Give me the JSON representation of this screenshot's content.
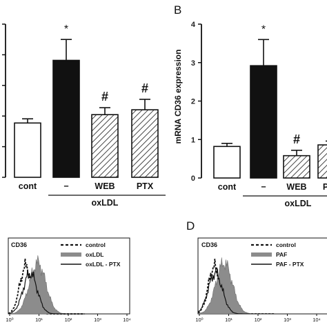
{
  "chart_data": [
    {
      "panel": "",
      "type": "bar",
      "categories": [
        "cont",
        "−",
        "WEB",
        "PTX"
      ],
      "group_label": "oxLDL",
      "values": [
        0.78,
        1.68,
        0.9,
        0.97
      ],
      "errors": [
        0.06,
        0.3,
        0.1,
        0.15
      ],
      "fills": [
        "open",
        "solid",
        "hatched",
        "hatched"
      ],
      "annotations": [
        "",
        "*",
        "#",
        "#"
      ],
      "ylim": [
        0,
        2.2
      ]
    },
    {
      "panel": "B",
      "type": "bar",
      "ylabel": "mRNA CD36 expression",
      "categories": [
        "cont",
        "−",
        "WEB",
        "PTX"
      ],
      "group_label": "oxLDL",
      "values": [
        0.82,
        2.92,
        0.58,
        0.86
      ],
      "errors": [
        0.08,
        0.68,
        0.14,
        0.1
      ],
      "fills": [
        "open",
        "solid",
        "hatched",
        "hatched"
      ],
      "annotations": [
        "",
        "*",
        "#",
        ""
      ],
      "yticks": [
        0,
        1,
        2,
        3,
        4
      ],
      "ylim": [
        0,
        4
      ]
    },
    {
      "panel": "",
      "type": "histogram",
      "label": "CD36",
      "xscale": "log",
      "xticks": [
        "10⁰",
        "10¹",
        "10²",
        "10³",
        "10⁴"
      ],
      "legend": [
        "control",
        "oxLDL",
        "oxLDL - PTX"
      ],
      "series": [
        {
          "name": "control",
          "style": "dashed",
          "peak_x": 3.5
        },
        {
          "name": "oxLDL",
          "style": "filled gray",
          "peak_x": 9
        },
        {
          "name": "oxLDL - PTX",
          "style": "solid",
          "peak_x": 5
        }
      ]
    },
    {
      "panel": "D",
      "type": "histogram",
      "label": "CD36",
      "xscale": "log",
      "xticks": [
        "10⁰",
        "10¹",
        "10²",
        "10³",
        "10⁴"
      ],
      "legend": [
        "control",
        "PAF",
        "PAF - PTX"
      ],
      "series": [
        {
          "name": "control",
          "style": "dashed",
          "peak_x": 3.2
        },
        {
          "name": "PAF",
          "style": "filled gray",
          "peak_x": 7
        },
        {
          "name": "PAF - PTX",
          "style": "solid",
          "peak_x": 3.5
        }
      ]
    }
  ]
}
